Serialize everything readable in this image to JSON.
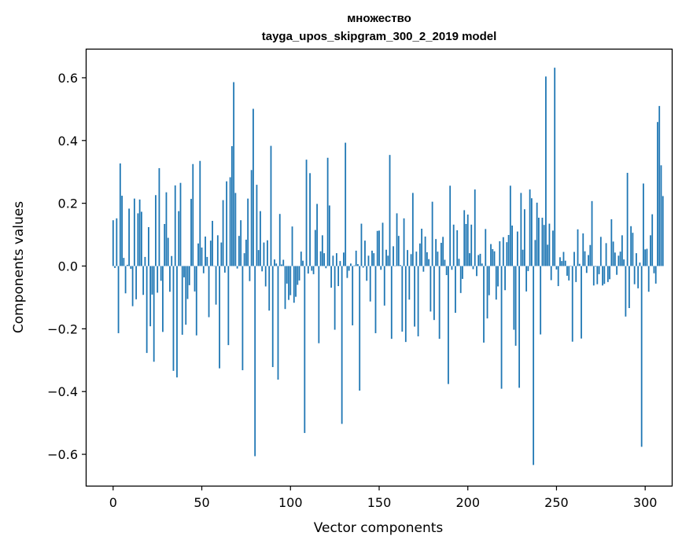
{
  "chart_data": {
    "type": "bar",
    "title": "множество",
    "subtitle": "tayga_upos_skipgram_300_2_2019 model",
    "xlabel": "Vector components",
    "ylabel": "Components values",
    "xlim": [
      -15,
      315
    ],
    "ylim": [
      -0.7,
      0.69
    ],
    "xticks": [
      0,
      50,
      100,
      150,
      200,
      250,
      300
    ],
    "xtick_labels": [
      "0",
      "50",
      "100",
      "150",
      "200",
      "250",
      "300"
    ],
    "yticks": [
      -0.6,
      -0.4,
      -0.2,
      0.0,
      0.2,
      0.4,
      0.6
    ],
    "ytick_labels": [
      "−0.6",
      "−0.4",
      "−0.2",
      "0.0",
      "0.2",
      "0.4",
      "0.6"
    ],
    "grid": false,
    "color": "#1f77b4",
    "values": [
      0.146,
      -0.006,
      0.152,
      -0.214,
      0.327,
      0.224,
      0.026,
      -0.087,
      0.004,
      0.183,
      -0.009,
      -0.128,
      0.215,
      -0.106,
      0.168,
      0.212,
      0.173,
      -0.092,
      0.029,
      -0.277,
      0.124,
      -0.192,
      -0.091,
      -0.305,
      0.226,
      -0.085,
      0.312,
      -0.047,
      -0.21,
      0.134,
      0.235,
      0.09,
      -0.082,
      0.032,
      -0.334,
      0.257,
      -0.355,
      0.175,
      0.265,
      -0.219,
      -0.036,
      -0.187,
      -0.105,
      -0.061,
      0.214,
      0.325,
      -0.081,
      -0.221,
      0.072,
      0.335,
      0.059,
      -0.023,
      0.094,
      0.029,
      -0.163,
      0.081,
      0.144,
      -0.001,
      -0.123,
      0.098,
      -0.326,
      0.075,
      0.21,
      -0.021,
      0.27,
      -0.252,
      0.283,
      0.382,
      0.586,
      0.233,
      -0.008,
      0.096,
      0.146,
      -0.332,
      0.041,
      0.084,
      0.215,
      -0.048,
      0.306,
      0.501,
      -0.606,
      0.259,
      0.051,
      0.175,
      -0.017,
      0.075,
      -0.065,
      0.082,
      -0.142,
      0.383,
      -0.322,
      0.021,
      0.008,
      -0.362,
      0.166,
      0.005,
      0.02,
      -0.137,
      -0.056,
      -0.108,
      -0.093,
      0.126,
      -0.117,
      -0.098,
      -0.06,
      -0.046,
      0.046,
      0.017,
      -0.532,
      0.339,
      -0.024,
      0.296,
      -0.015,
      -0.026,
      0.115,
      0.198,
      -0.246,
      0.047,
      0.098,
      0.041,
      -0.007,
      0.345,
      0.193,
      -0.069,
      0.033,
      -0.203,
      0.041,
      -0.064,
      0.016,
      -0.503,
      0.043,
      0.393,
      -0.038,
      -0.015,
      0.008,
      -0.189,
      0.002,
      0.049,
      0.006,
      -0.397,
      0.135,
      -0.005,
      0.081,
      -0.047,
      0.033,
      -0.113,
      0.049,
      0.041,
      -0.214,
      0.112,
      0.113,
      -0.012,
      0.138,
      -0.126,
      0.052,
      0.033,
      0.354,
      -0.232,
      0.063,
      -0.001,
      0.168,
      0.096,
      0.003,
      -0.209,
      0.152,
      -0.242,
      0.051,
      -0.107,
      0.038,
      0.233,
      -0.193,
      0.046,
      -0.224,
      0.072,
      0.119,
      -0.018,
      0.094,
      0.044,
      0.022,
      -0.145,
      0.205,
      -0.172,
      0.086,
      0.046,
      -0.232,
      0.074,
      0.093,
      0.02,
      -0.029,
      -0.376,
      0.256,
      -0.012,
      0.132,
      -0.149,
      0.114,
      0.023,
      -0.086,
      -0.041,
      0.178,
      0.134,
      0.164,
      0.041,
      0.132,
      -0.01,
      0.244,
      -0.032,
      0.035,
      0.039,
      0.008,
      -0.244,
      0.118,
      -0.167,
      -0.093,
      0.07,
      0.054,
      0.047,
      -0.107,
      -0.065,
      0.079,
      -0.391,
      0.092,
      -0.077,
      0.076,
      0.099,
      0.256,
      0.129,
      -0.203,
      -0.254,
      0.11,
      -0.388,
      0.233,
      0.052,
      0.181,
      -0.081,
      -0.016,
      0.244,
      0.216,
      -0.634,
      0.083,
      0.202,
      0.154,
      -0.218,
      0.154,
      0.131,
      0.604,
      0.068,
      0.135,
      -0.045,
      0.113,
      0.632,
      -0.011,
      -0.064,
      0.028,
      0.016,
      0.045,
      0.017,
      -0.031,
      -0.046,
      -0.001,
      -0.241,
      0.045,
      -0.051,
      0.117,
      0.007,
      -0.231,
      0.104,
      0.047,
      -0.022,
      0.035,
      0.067,
      0.207,
      -0.062,
      -0.002,
      -0.058,
      -0.026,
      0.093,
      -0.062,
      -0.057,
      0.073,
      -0.051,
      -0.042,
      0.149,
      0.078,
      0.043,
      -0.028,
      0.033,
      0.046,
      0.098,
      0.021,
      -0.161,
      0.297,
      -0.134,
      0.127,
      0.106,
      -0.058,
      0.041,
      -0.071,
      0.011,
      -0.576,
      0.263,
      0.053,
      0.055,
      -0.082,
      0.098,
      0.165,
      -0.023,
      -0.056,
      0.459,
      0.51,
      0.321,
      0.223
    ]
  }
}
